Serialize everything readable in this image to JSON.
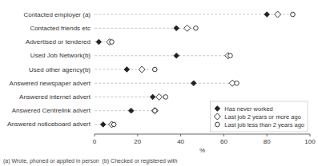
{
  "chart_data": {
    "type": "dot",
    "orientation": "horizontal",
    "xlabel": "%",
    "categories": [
      "Contacted employer (a)",
      "Contacted friends etc",
      "Advertised or tendered",
      "Used Job Network(b)",
      "Used other agency(b)",
      "Answered newspaper advert",
      "Answered internet advert",
      "Answered Centrelink advert",
      "Answered noticeboard advert"
    ],
    "series": [
      {
        "name": "Has never worked",
        "marker": "diamond",
        "values": [
          80,
          38,
          2,
          38,
          15,
          46,
          27,
          17,
          4
        ]
      },
      {
        "name": "Last job 2 years or more ago",
        "marker": "diamond-open",
        "values": [
          85,
          43,
          7,
          62,
          22,
          64,
          30,
          28,
          8
        ]
      },
      {
        "name": "Last job less than 2 years ago",
        "marker": "circle-open",
        "values": [
          92,
          47,
          8,
          63,
          28,
          66,
          33,
          28,
          9
        ]
      }
    ],
    "xlim": [
      0,
      100
    ],
    "xticks": [
      0,
      20,
      40,
      60,
      80,
      100
    ],
    "legend": "lower right",
    "annotations": [
      "(a) Wrote, phoned or applied in person  (b) Checked or registered with"
    ]
  }
}
